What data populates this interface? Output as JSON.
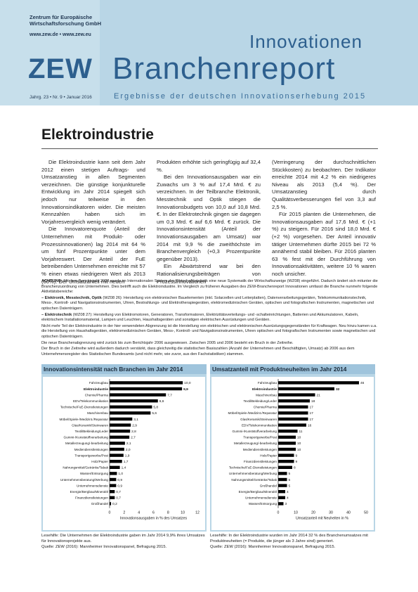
{
  "header": {
    "org_line1": "Zentrum für Europäische",
    "org_line2": "Wirtschaftsforschung GmbH",
    "web": "www.zew.de • www.zew.eu",
    "logo": "ZEW",
    "title_small": "Innovationen",
    "title_large": "Branchenreport",
    "issue": "Jahrg. 23 • Nr. 9 • Januar 2016",
    "subtitle": "Ergebnisse der deutschen Innovationserhebung 2015"
  },
  "article": {
    "title": "Elektroindustrie",
    "col1": [
      "Die Elektroindustrie kann seit dem Jahr 2012 einen stetigen Auftrags- und Umsatzanstieg in allen Segmenten verzeichnen. Die günstige konjunkturelle Entwicklung im Jahr 2014 spiegelt sich jedoch nur teilweise in den Innovationsindikatoren wider. Die meisten Kennzahlen haben sich im Vorjahresvergleich wenig verändert.",
      "Die Innovatorenquote (Anteil der Unternehmen mit Produkt- oder Prozessinnovationen) lag 2014 mit 64 % um fünf Prozentpunkte unter dem Vorjahreswert. Der Anteil der FuE betreibenden Unternehmen erreichte mit 57 % einen etwas niedrigeren Wert als 2013 (60%). Der Umsatzanteil mit neuen"
    ],
    "col2": [
      "Produkten erhöhte sich geringfügig auf 32,4 %.",
      "Bei den Innovationsausgaben war ein Zuwachs um 3 % auf 17,4 Mrd. € zu verzeichnen. In der Teilbranche Elektronik, Messtechnik und Optik stiegen die Innovationsbudgets von 10,0 auf 10,8 Mrd. €. In der Elektrotechnik gingen sie dagegen um 0,3 Mrd. € auf 6,6 Mrd. € zurück. Die Innovationsintensität (Anteil der Innovationsausgaben am Umsatz) war 2014 mit 9,9 % die zweithöchste im Branchenvergleich (+0,3 Prozentpunkte gegenüber 2013).",
      "Ein Abwärtstrend war bei den Rationalisierungsbeiträgen von Prozessinnovationen"
    ],
    "col3": [
      "(Verringerung der durchschnittlichen Stückkosten) zu beobachten. Der Indikator erreichte 2014 mit 4,2 % ein niedrigeres Niveau als 2013 (5,4 %). Der Umsatzanstieg durch Qualitätsverbesserungen fiel von 3,3 auf 2,5 %.",
      "Für 2015 planten die Unternehmen, die Innovationsausgaben auf 17,6 Mrd. € (+1 %) zu steigern. Für 2016 sind 18,0 Mrd. € (+2 %) vorgesehen. Der Anteil innovativ tätiger Unternehmen dürfte 2015 bei 72 % annähernd stabil bleiben. Für 2016 planten 63 % fest mit der Durchführung von Innovationsaktivitäten, weitere 10 % waren noch unsicher."
    ]
  },
  "note": {
    "achtung_label": "ACHTUNG:",
    "achtung": "Mit dem Berichtsjahr 2008 wurde im Internationalen System der Wirtschaftsstatistik eine neue Systematik der Wirtschaftszweige (WZ08) eingeführt. Dadurch ändert sich mitunter die Branchenzuordnung von Unternehmen. Dies betrifft auch die Elektroindustrie. Im Vergleich zu früheren Ausgaben des ZEW-Branchenreport Innovationen umfasst die Branche nunmehr folgende Aktivitätsbereiche:",
    "item1_label": "– Elektronik, Messtechnik, Optik",
    "item1": "(WZ08 26): Herstellung von elektronischen Bauelementen (inkl. Solarzellen und Leiterplatten), Datenverarbeitungsgeräten, Telekommunikationstechnik, Mess-, Kontroll- und Navigationsinstrumenten, Uhren, Bestrahlungs- und Elektrotherapiegeräten, elektromedizinischen Geräten, optischen und fotografischen Instrumenten, magnetischen und optischen Datenträgern.",
    "item2_label": "– Elektrotechnik",
    "item2": "(WZ08 27): Herstellung von Elektromotoren, Generatoren, Transformatoren, Elektrizitätsverteilungs- und -schalteinrichtungen, Batterien und Akkumulatoren, Kabeln, elektrischem Installationsmaterial, Lampen und Leuchten, Haushaltsgeräten und sonstigen elektrischen Ausrüstungen und Geräten.",
    "para2": "Nicht mehr Teil der Elektroindustrie in der hier verwendeten Abgrenzung ist die Herstellung von elektrischen und elektronischen Ausrüstungsgegenständen für Kraftwagen. Neu hinzu kamen u.a. die Herstellung von Haushaltsgeräten, elektromedizinischen Geräten, Mess-, Kontroll- und Navigationsinstrumenten, Uhren optischen und fotografischen Instrumenten sowie magnetischen und optischen Datenträgern.",
    "para3": "Die neue Branchenabgrenzung wird zurück bis zum Berichtsjahr 2006 ausgewiesen. Zwischen 2005 und 2006 besteht ein Bruch in der Zeitreihe.",
    "para4": "Der Bruch in der Zeitreihe wird außerdem dadurch verstärkt, dass gleichzeitig die statistischen Basiszahlen (Anzahl der Unternehmen und Beschäftigten, Umsatz) ab 2006 aus dem Unternehmensregister des Statistischen Bundesamts (und nicht mehr, wie zuvor, aus den Fachstatistiken) stammen."
  },
  "chart_data": [
    {
      "type": "bar",
      "orientation": "horizontal",
      "title": "Innovationsintensität nach Branchen im Jahr 2014",
      "xlabel": "Innovationsausgaben in % des Umsatzes",
      "xlim": [
        0,
        12
      ],
      "xticks": [
        "0",
        "2",
        "4",
        "6",
        "8",
        "10",
        "12"
      ],
      "categories": [
        "Fahrzeugbau",
        "Elektroindustrie",
        "Chemie/Pharma",
        "EDV/Telekommunikation",
        "Technische/FuE-Dienstleistungen",
        "Maschinenbau",
        "Möbel/Spiele-/Medizint./Reparatur",
        "Glas/Keramik/Steinwaren",
        "Textil/Bekleidung/Leder",
        "Gummi-/Kunststoffverarbeitung",
        "Metallerzeugung/-bearbeitung",
        "Mediendienstleistungen",
        "Transportgewerbe/Post",
        "Holz/Papier",
        "Nahrungsmittel/Getränke/Tabak",
        "Wasser/Entsorgung",
        "Unternehmensberatung/Werbung",
        "Unternehmensdienste",
        "Energie/Bergbau/Mineralöl",
        "Finanzdienstleistungen",
        "Großhandel"
      ],
      "values": [
        10.0,
        9.9,
        7.7,
        6.6,
        5.8,
        5.6,
        3.1,
        2.9,
        2.8,
        2.7,
        2.1,
        2.0,
        1.9,
        1.7,
        1.4,
        1.0,
        0.9,
        0.9,
        0.7,
        0.7,
        0.2
      ],
      "labels": [
        "10,0",
        "9,9",
        "7,7",
        "6,6",
        "5,8",
        "5,6",
        "3,1",
        "2,9",
        "2,8",
        "2,7",
        "2,1",
        "2,0",
        "1,9",
        "1,7",
        "1,4",
        "1,0",
        "0,9",
        "0,9",
        "0,7",
        "0,7",
        "0,2"
      ],
      "highlight": "Elektroindustrie"
    },
    {
      "type": "bar",
      "orientation": "horizontal",
      "title": "Umsatzanteil mit Produktneuheiten im Jahr 2014",
      "xlabel": "Umsatzanteil mit Neuheiten in %",
      "xlim": [
        0,
        50
      ],
      "xticks": [
        "0",
        "10",
        "20",
        "30",
        "40",
        "50"
      ],
      "categories": [
        "Fahrzeugbau",
        "Elektroindustrie",
        "Maschinenbau",
        "Textil/Bekleidung/Leder",
        "Chemie/Pharma",
        "Möbel/Spiele-/Medizint./Reparatur",
        "Glas/Keramik/Steinwaren",
        "EDV/Telekommunikation",
        "Gummi-/Kunststoffverarbeitung",
        "Transportgewerbe/Post",
        "Metallerzeugung/-bearbeitung",
        "Mediendienstleistungen",
        "Holz/Papier",
        "Finanzdienstleistungen",
        "Technische/FuE-Dienstleistungen",
        "Unternehmensberatung/Werbung",
        "Nahrungsmittel/Getränke/Tabak",
        "Großhandel",
        "Energie/Bergbau/Mineralöl",
        "Unternehmensdienste",
        "Wasser/Entsorgung"
      ],
      "values": [
        46,
        32,
        21,
        18,
        17,
        17,
        17,
        16,
        11,
        10,
        10,
        10,
        9,
        9,
        8,
        5,
        5,
        5,
        4,
        4,
        3
      ],
      "labels": [
        "46",
        "32",
        "21",
        "18",
        "17",
        "17",
        "17",
        "16",
        "11",
        "10",
        "10",
        "10",
        "9",
        "9",
        "8",
        "5",
        "5",
        "5",
        "4",
        "4",
        "3"
      ],
      "highlight": "Elektroindustrie"
    }
  ],
  "captions": {
    "left_1": "Lesehilfe: Die Unternehmen der Elektroindustrie gaben im Jahr 2014 9,9% ihres Umsatzes für Innovationsprojekte aus.",
    "left_2": "Quelle: ZEW (2016): Mannheimer Innovationspanel, Befragung 2015.",
    "right_1": "Lesehilfe: In der Elektroindustrie wurden im Jahr 2014 32 % des Branchenumsatzes mit Produktneuheiten (= Produkte, die jünger als 3 Jahre sind) generiert.",
    "right_2": "Quelle: ZEW (2016): Mannheimer Innovationspanel, Befragung 2015."
  },
  "colors": {
    "header_band": "#b9d6e6",
    "brand_blue": "#2d5f8e",
    "bar": "#000000"
  }
}
